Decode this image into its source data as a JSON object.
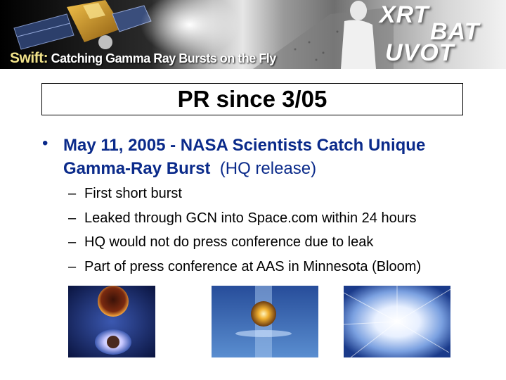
{
  "banner": {
    "mission": "Swift:",
    "tagline": "Catching Gamma Ray Bursts on the Fly",
    "instruments": [
      "XRT",
      "BAT",
      "UVOT"
    ]
  },
  "slide": {
    "title": "PR since 3/05",
    "main_bullet": {
      "marker": "•",
      "headline": "May 11, 2005 - NASA Scientists Catch Unique Gamma-Ray Burst",
      "suffix": "(HQ release)"
    },
    "sub_bullets": [
      "First short burst",
      "Leaked through GCN into Space.com within 24 hours",
      "HQ would not do press conference due to leak",
      "Part of press conference at AAS in Minnesota (Bloom)"
    ],
    "sub_marker": "–"
  },
  "images": [
    "neutron-star-merger-illustration",
    "collision-explosion-illustration",
    "gamma-ray-burst-flash-illustration"
  ]
}
